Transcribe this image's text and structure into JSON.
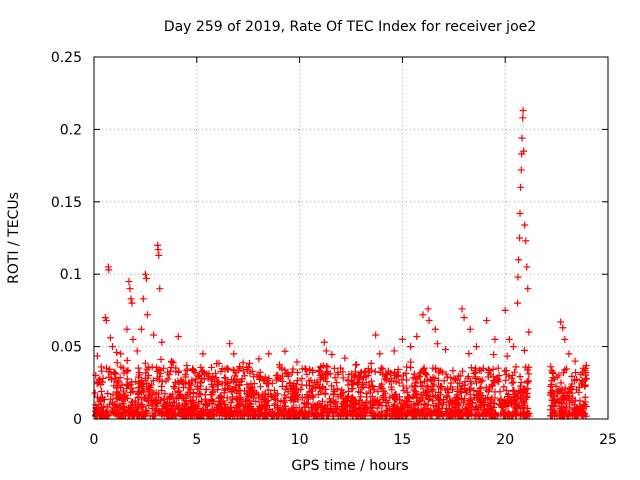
{
  "chart_data": {
    "type": "scatter",
    "title": "Day 259 of 2019, Rate Of TEC Index for receiver joe2",
    "xlabel": "GPS time / hours",
    "ylabel": "ROTI / TECUs",
    "xlim": [
      0,
      25
    ],
    "ylim": [
      0,
      0.25
    ],
    "xticks": [
      0,
      5,
      10,
      15,
      20,
      25
    ],
    "xtick_labels": [
      "0",
      "5",
      "10",
      "15",
      "20",
      "25"
    ],
    "yticks": [
      0,
      0.05,
      0.1,
      0.15,
      0.2,
      0.25
    ],
    "ytick_labels": [
      "0",
      "0.05",
      "0.1",
      "0.15",
      "0.2",
      "0.25"
    ],
    "grid": true,
    "marker": "plus",
    "color": "#ff0000",
    "gap_hours": [
      21.2,
      22.2
    ],
    "series": [
      {
        "name": "ROTI",
        "points": [
          [
            0.55,
            0.07
          ],
          [
            0.6,
            0.068
          ],
          [
            0.7,
            0.105
          ],
          [
            0.72,
            0.103
          ],
          [
            0.8,
            0.056
          ],
          [
            0.9,
            0.05
          ],
          [
            1.1,
            0.046
          ],
          [
            1.3,
            0.045
          ],
          [
            1.6,
            0.062
          ],
          [
            1.7,
            0.095
          ],
          [
            1.75,
            0.09
          ],
          [
            1.8,
            0.083
          ],
          [
            1.85,
            0.08
          ],
          [
            1.9,
            0.055
          ],
          [
            2.1,
            0.047
          ],
          [
            2.3,
            0.062
          ],
          [
            2.4,
            0.083
          ],
          [
            2.5,
            0.1
          ],
          [
            2.55,
            0.097
          ],
          [
            2.6,
            0.072
          ],
          [
            2.9,
            0.058
          ],
          [
            3.1,
            0.12
          ],
          [
            3.12,
            0.117
          ],
          [
            3.15,
            0.113
          ],
          [
            3.2,
            0.09
          ],
          [
            3.3,
            0.053
          ],
          [
            4.1,
            0.057
          ],
          [
            5.3,
            0.045
          ],
          [
            6.6,
            0.052
          ],
          [
            6.8,
            0.045
          ],
          [
            8.5,
            0.045
          ],
          [
            11.2,
            0.053
          ],
          [
            11.3,
            0.047
          ],
          [
            12.2,
            0.042
          ],
          [
            13.7,
            0.058
          ],
          [
            13.9,
            0.045
          ],
          [
            14.6,
            0.047
          ],
          [
            15.0,
            0.055
          ],
          [
            15.4,
            0.05
          ],
          [
            15.7,
            0.057
          ],
          [
            16.0,
            0.072
          ],
          [
            16.25,
            0.076
          ],
          [
            16.3,
            0.068
          ],
          [
            16.6,
            0.062
          ],
          [
            16.7,
            0.052
          ],
          [
            17.1,
            0.048
          ],
          [
            17.9,
            0.076
          ],
          [
            18.0,
            0.07
          ],
          [
            18.3,
            0.062
          ],
          [
            18.6,
            0.05
          ],
          [
            19.1,
            0.068
          ],
          [
            19.5,
            0.055
          ],
          [
            20.0,
            0.075
          ],
          [
            20.2,
            0.055
          ],
          [
            20.4,
            0.05
          ],
          [
            20.6,
            0.08
          ],
          [
            20.62,
            0.098
          ],
          [
            20.65,
            0.11
          ],
          [
            20.7,
            0.125
          ],
          [
            20.72,
            0.142
          ],
          [
            20.75,
            0.16
          ],
          [
            20.78,
            0.172
          ],
          [
            20.8,
            0.183
          ],
          [
            20.82,
            0.194
          ],
          [
            20.85,
            0.208
          ],
          [
            20.87,
            0.213
          ],
          [
            20.9,
            0.185
          ],
          [
            20.95,
            0.134
          ],
          [
            21.0,
            0.123
          ],
          [
            21.05,
            0.105
          ],
          [
            21.1,
            0.09
          ],
          [
            21.15,
            0.06
          ],
          [
            22.7,
            0.067
          ],
          [
            22.8,
            0.063
          ],
          [
            22.9,
            0.055
          ],
          [
            23.1,
            0.045
          ],
          [
            23.4,
            0.04
          ],
          [
            23.9,
            0.035
          ]
        ]
      }
    ]
  }
}
